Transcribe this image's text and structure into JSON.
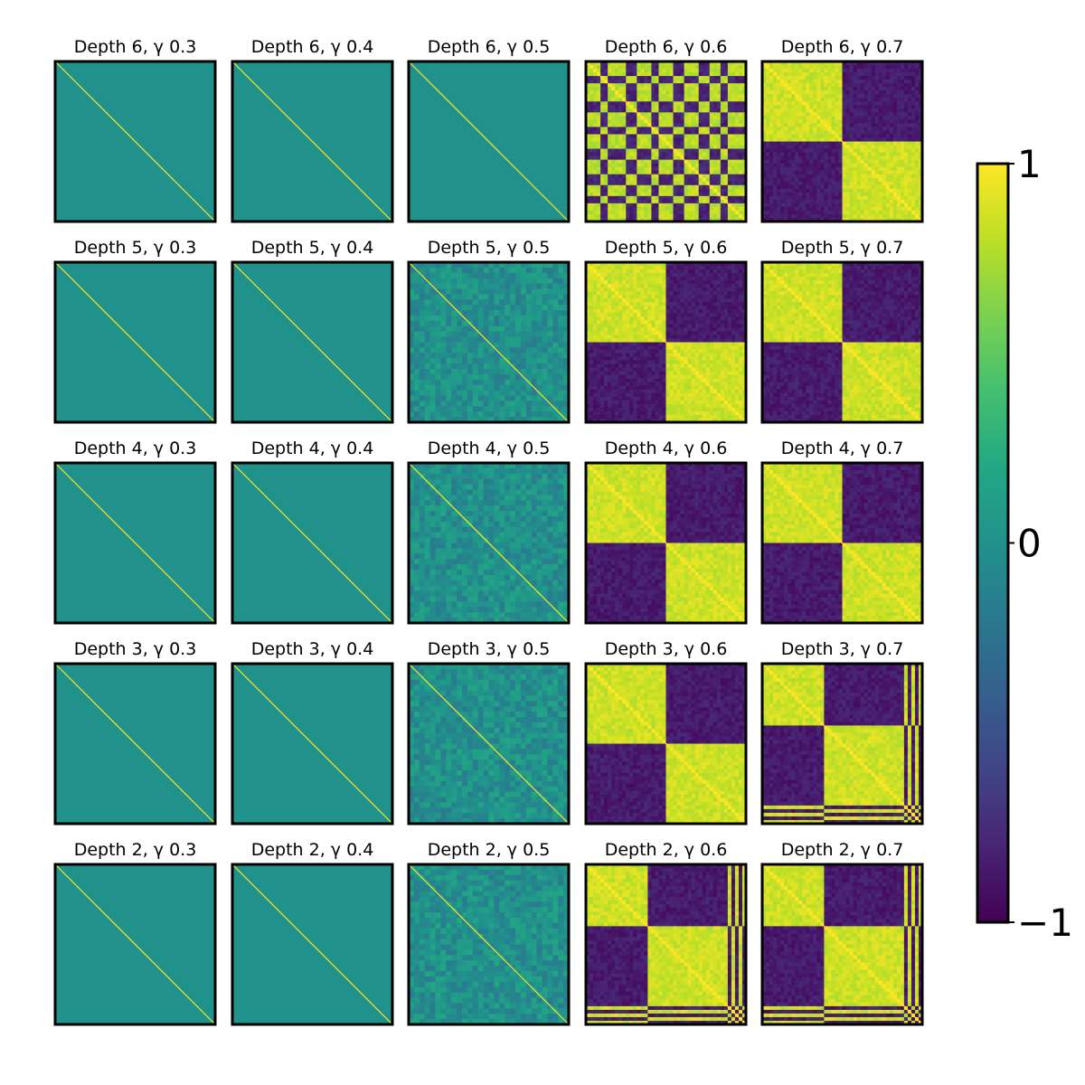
{
  "chart_data": {
    "type": "heatmap",
    "title": "",
    "layout": {
      "rows": 5,
      "cols": 5
    },
    "row_depths": [
      6,
      5,
      4,
      3,
      2
    ],
    "col_gammas": [
      "0.3",
      "0.4",
      "0.5",
      "0.6",
      "0.7"
    ],
    "panel_titles": [
      [
        "Depth 6, γ 0.3",
        "Depth 6, γ 0.4",
        "Depth 6, γ 0.5",
        "Depth 6, γ 0.6",
        "Depth 6, γ 0.7"
      ],
      [
        "Depth 5, γ 0.3",
        "Depth 5, γ 0.4",
        "Depth 5, γ 0.5",
        "Depth 5, γ 0.6",
        "Depth 5, γ 0.7"
      ],
      [
        "Depth 4, γ 0.3",
        "Depth 4, γ 0.4",
        "Depth 4, γ 0.5",
        "Depth 4, γ 0.6",
        "Depth 4, γ 0.7"
      ],
      [
        "Depth 3, γ 0.3",
        "Depth 3, γ 0.4",
        "Depth 3, γ 0.5",
        "Depth 3, γ 0.6",
        "Depth 3, γ 0.7"
      ],
      [
        "Depth 2, γ 0.3",
        "Depth 2, γ 0.4",
        "Depth 2, γ 0.5",
        "Depth 2, γ 0.6",
        "Depth 2, γ 0.7"
      ]
    ],
    "panel_patterns": [
      [
        "diagonal",
        "diagonal",
        "diagonal",
        "multi-block",
        "two-block"
      ],
      [
        "diagonal",
        "diagonal",
        "weak-block",
        "two-block",
        "two-block"
      ],
      [
        "diagonal",
        "diagonal",
        "weak-block",
        "two-block",
        "two-block"
      ],
      [
        "diagonal",
        "diagonal",
        "weak-block",
        "two-block",
        "three-block"
      ],
      [
        "diagonal",
        "diagonal",
        "weak-block",
        "three-block",
        "three-block"
      ]
    ],
    "colorbar": {
      "colormap": "viridis",
      "range": [
        -1,
        1
      ],
      "ticks": [
        1,
        0,
        -1
      ],
      "tick_labels": [
        "1",
        "0",
        "−1"
      ]
    },
    "grid": false,
    "legend_placement": "right (colorbar)",
    "colors": {
      "min": "#440154",
      "zero": "#21918c",
      "max": "#fde725"
    }
  }
}
